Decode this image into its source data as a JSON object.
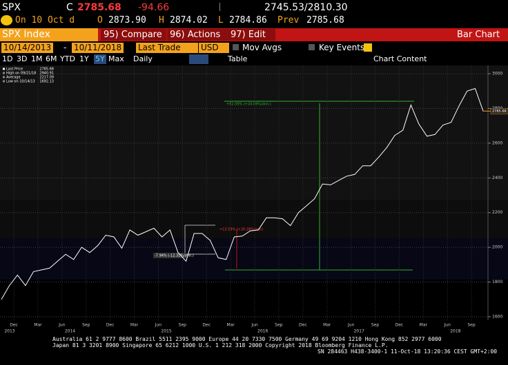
{
  "header": {
    "ticker": "SPX",
    "close_label": "C",
    "last": "2785.68",
    "change": "-94.66",
    "bid_ask": "2745.53/2810.30",
    "date": "On 10 Oct d",
    "open_label": "O",
    "open": "2873.90",
    "high_label": "H",
    "high": "2874.02",
    "low_label": "L",
    "low": "2784.86",
    "prev_label": "Prev",
    "prev": "2785.68"
  },
  "toolbar": {
    "security": "SPX Index",
    "buttons": [
      "95) Compare",
      "96) Actions",
      "97) Edit"
    ],
    "view": "Bar Chart",
    "start_date": "10/14/2013",
    "dash": "-",
    "end_date": "10/11/2018",
    "field": "Last Trade",
    "currency": "USD",
    "mov_avgs": "Mov Avgs",
    "key_events": "Key Events",
    "periods": [
      "1D",
      "3D",
      "1M",
      "6M",
      "YTD",
      "1Y",
      "5Y",
      "Max"
    ],
    "frequency": "Daily",
    "table": "Table",
    "chart_content": "Chart Content"
  },
  "chart_data": {
    "type": "line",
    "legend": [
      {
        "label": "Last Price",
        "value": "2785.68"
      },
      {
        "label": "High on 09/21/18",
        "value": "2940.91"
      },
      {
        "label": "Average",
        "value": "2217.09"
      },
      {
        "label": "Low on 10/14/13",
        "value": "1692.13"
      }
    ],
    "series": [
      {
        "name": "Last Price",
        "color": "#ffffff",
        "values": [
          1700,
          1780,
          1840,
          1780,
          1860,
          1870,
          1880,
          1920,
          1960,
          1930,
          2000,
          1970,
          2010,
          2070,
          2060,
          1995,
          2100,
          2070,
          2090,
          2110,
          2060,
          2100,
          1970,
          1920,
          2080,
          2080,
          2040,
          1940,
          1930,
          2060,
          2065,
          2095,
          2100,
          2170,
          2170,
          2165,
          2125,
          2200,
          2240,
          2280,
          2365,
          2360,
          2385,
          2410,
          2420,
          2470,
          2470,
          2520,
          2575,
          2645,
          2675,
          2820,
          2710,
          2640,
          2650,
          2705,
          2720,
          2815,
          2900,
          2915,
          2785
        ]
      }
    ],
    "last_price_tag": "2785.68",
    "ylim": [
      1580,
      3048
    ],
    "yticks": [
      1600,
      1800,
      2000,
      2200,
      2400,
      2600,
      2800,
      3000
    ],
    "grid": true,
    "x_labels": [
      "Dec",
      "Mar",
      "Jun",
      "Sep",
      "Dec",
      "Mar",
      "Jun",
      "Sep",
      "Dec",
      "Mar",
      "Jun",
      "Sep",
      "Dec",
      "Mar",
      "Jun",
      "Sep",
      "Dec",
      "Mar",
      "Jun",
      "Sep"
    ],
    "year_labels": [
      "2013",
      "2014",
      "2015",
      "2016",
      "2017",
      "2018"
    ],
    "annotations": [
      "+52.09% (+24.09%/ann.)",
      "+13.59% (+20.28%/ann)",
      "-7.94% (-12.31%/ann.)"
    ]
  },
  "footer": [
    "Australia 61 2 9777 8600 Brazil 5511 2395 9000 Europe 44 20 7330 7500 Germany 49 69 9204 1210 Hong Kong 852 2977 6000",
    "Japan 81 3 3201 8900       Singapore 65 6212 1000       U.S. 1 212 318 2000       Copyright 2018 Bloomberg Finance L.P.",
    "SN 284463 H438-3400-1 11-Oct-18 13:20:36 CEST GMT+2:00"
  ]
}
